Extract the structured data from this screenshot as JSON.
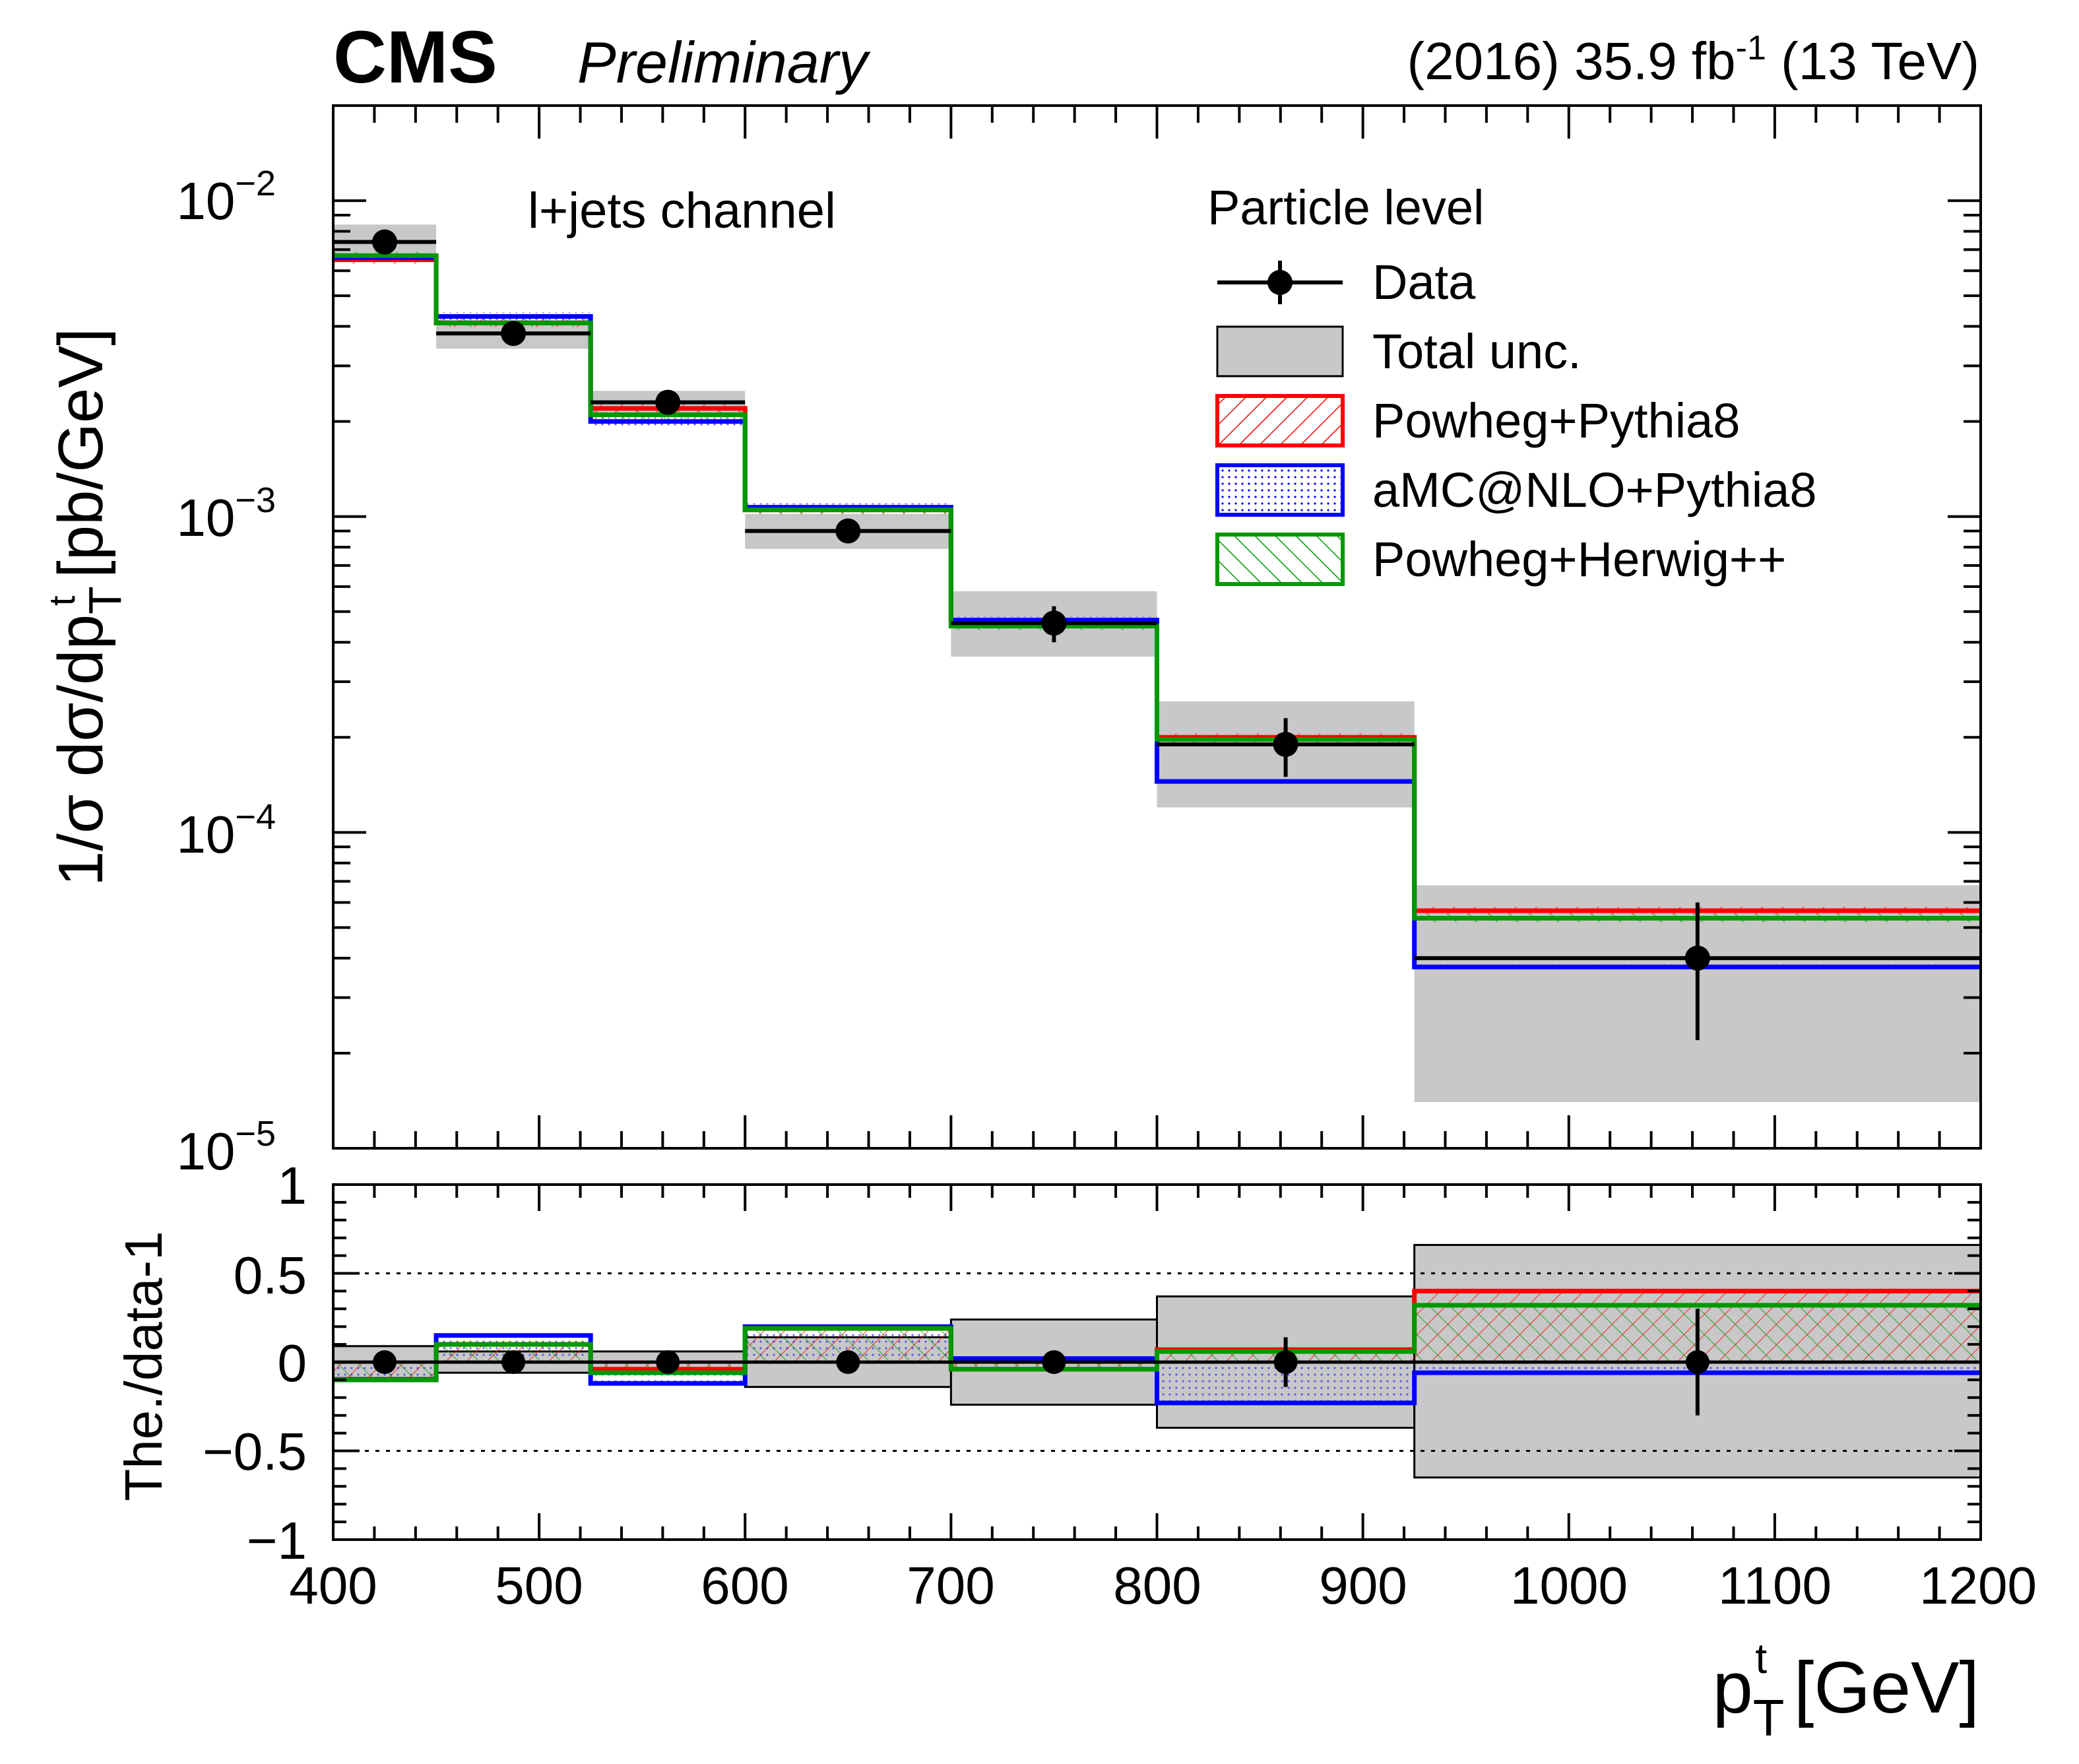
{
  "header": {
    "cms": "CMS",
    "preliminary": "Preliminary",
    "lumi_prefix": "(2016) 35.9 fb",
    "lumi_sup": "-1",
    "lumi_suffix": " (13 TeV)"
  },
  "annotation": "l+jets channel",
  "legend": {
    "title": "Particle level",
    "entries": [
      {
        "key": "data",
        "label": "Data"
      },
      {
        "key": "unc",
        "label": "Total unc."
      },
      {
        "key": "powheg_pythia8",
        "label": "Powheg+Pythia8"
      },
      {
        "key": "amcnlo_pythia8",
        "label": "aMC@NLO+Pythia8"
      },
      {
        "key": "powheg_herwig",
        "label": "Powheg+Herwig++"
      }
    ]
  },
  "colors": {
    "data": "#000000",
    "unc": "#c8c8c8",
    "powheg_pythia8": "#ff0000",
    "amcnlo_pythia8": "#0000ff",
    "powheg_herwig": "#009900"
  },
  "axis_text": {
    "ylabel_main_prefix": "1/σ dσ/dp",
    "ylabel_main_sub": "T",
    "ylabel_main_sup": "t",
    "ylabel_main_suffix": " [pb/GeV]",
    "ylabel_ratio": "The./data-1",
    "xlabel_prefix": "p",
    "xlabel_sub": "T",
    "xlabel_sup": "t",
    "xlabel_suffix": " [GeV]",
    "main_tick_labels": [
      "10",
      "10",
      "10",
      "10"
    ],
    "main_tick_exponents": [
      "−2",
      "−3",
      "−4",
      "−5"
    ],
    "ratio_tick_labels": [
      "1",
      "0.5",
      "0",
      "−0.5",
      "−1"
    ],
    "x_tick_labels": [
      "400",
      "500",
      "600",
      "700",
      "800",
      "900",
      "1000",
      "1100",
      "1200"
    ]
  },
  "chart_data": {
    "type": "bar",
    "xlim": [
      400,
      1200
    ],
    "ylim": [
      1e-05,
      0.02
    ],
    "yscale": "log",
    "ratio_ylim": [
      -1,
      1
    ],
    "x_ticks": [
      400,
      500,
      600,
      700,
      800,
      900,
      1000,
      1100,
      1200
    ],
    "y_ticks": [
      0.01,
      0.001,
      0.0001,
      1e-05
    ],
    "ratio_y_ticks": [
      1,
      0.5,
      0,
      -0.5,
      -1
    ],
    "ratio_reference_lines": [
      0.5,
      -0.5
    ],
    "bin_edges": [
      400,
      450,
      525,
      600,
      700,
      800,
      925,
      1200
    ],
    "series": [
      {
        "key": "data",
        "name": "Data",
        "x": [
          425,
          487.5,
          562.5,
          650,
          750,
          862.5,
          1062.5
        ],
        "values": [
          0.0074,
          0.0038,
          0.0023,
          0.0009,
          0.00046,
          0.00019,
          4e-05
        ],
        "stat_err_up": [
          0.0004,
          0.0002,
          0.00012,
          4e-05,
          6e-05,
          4e-05,
          2e-05
        ],
        "stat_err_down": [
          0.0004,
          0.0002,
          0.00012,
          4e-05,
          6e-05,
          4e-05,
          1.8e-05
        ],
        "unc_up": [
          0.0084,
          0.0042,
          0.0025,
          0.00102,
          0.00058,
          0.00026,
          6.8e-05
        ],
        "unc_down": [
          0.0066,
          0.0034,
          0.0021,
          0.00079,
          0.00036,
          0.00012,
          1.4e-05
        ]
      },
      {
        "key": "powheg_pythia8",
        "name": "Powheg+Pythia8",
        "values": [
          0.0065,
          0.0041,
          0.0022,
          0.00105,
          0.00046,
          0.0002,
          5.65e-05
        ]
      },
      {
        "key": "amcnlo_pythia8",
        "name": "aMC@NLO+Pythia8",
        "values": [
          0.0066,
          0.0043,
          0.002,
          0.00107,
          0.00047,
          0.000145,
          3.75e-05
        ]
      },
      {
        "key": "powheg_herwig",
        "name": "Powheg+Herwig++",
        "values": [
          0.0067,
          0.0041,
          0.0021,
          0.00105,
          0.00045,
          0.000197,
          5.35e-05
        ]
      }
    ],
    "ratio": {
      "ylabel": "The./data-1",
      "unc_up": [
        0.09,
        0.06,
        0.06,
        0.14,
        0.24,
        0.37,
        0.66
      ],
      "unc_down": [
        -0.09,
        -0.06,
        -0.06,
        -0.14,
        -0.24,
        -0.37,
        -0.65
      ],
      "series": [
        {
          "key": "powheg_pythia8",
          "values": [
            -0.1,
            0.1,
            -0.04,
            0.19,
            -0.04,
            0.07,
            0.4
          ]
        },
        {
          "key": "amcnlo_pythia8",
          "values": [
            -0.1,
            0.15,
            -0.12,
            0.2,
            0.02,
            -0.23,
            -0.06
          ]
        },
        {
          "key": "powheg_herwig",
          "values": [
            -0.1,
            0.1,
            -0.06,
            0.19,
            -0.04,
            0.06,
            0.32
          ]
        }
      ],
      "data_err_up": [
        0.0,
        0.0,
        0.0,
        0.0,
        0.0,
        0.14,
        0.3
      ],
      "data_err_down": [
        0.0,
        0.0,
        0.0,
        0.0,
        0.0,
        -0.14,
        -0.3
      ]
    }
  }
}
